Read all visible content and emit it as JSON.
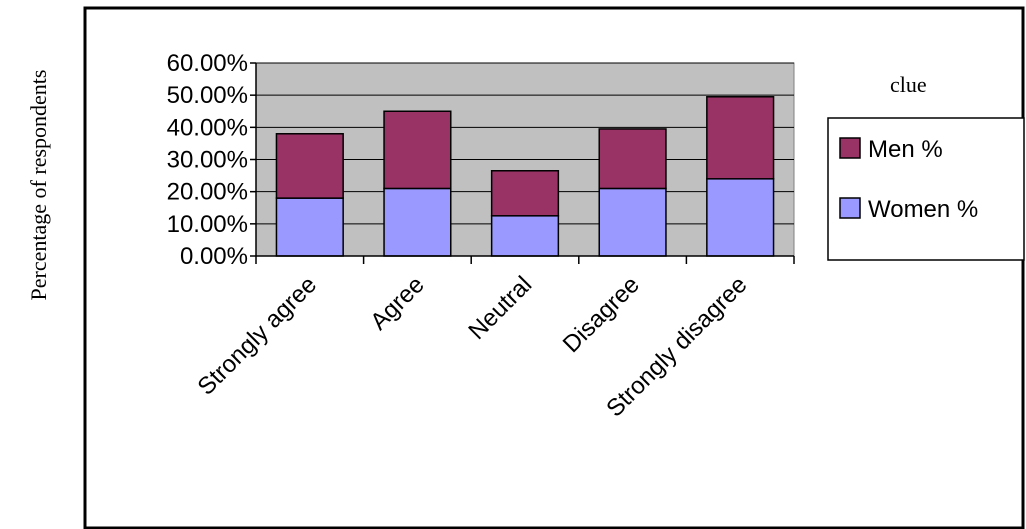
{
  "chart_data": {
    "type": "bar",
    "stacked": true,
    "ylabel": "Percentage of respondents",
    "xlabel": "",
    "categories": [
      "Strongly agree",
      "Agree",
      "Neutral",
      "Disagree",
      "Strongly disagree"
    ],
    "series": [
      {
        "name": "Women %",
        "values": [
          0.18,
          0.21,
          0.125,
          0.21,
          0.24
        ],
        "color": "#9999ff"
      },
      {
        "name": "Men %",
        "values": [
          0.2,
          0.24,
          0.14,
          0.185,
          0.255
        ],
        "color": "#993366"
      }
    ],
    "ylim": [
      0,
      0.6
    ],
    "yticks": [
      "0.00%",
      "10.00%",
      "20.00%",
      "30.00%",
      "40.00%",
      "50.00%",
      "60.00%"
    ],
    "grid": true,
    "plot_background": "#c0c0c0",
    "legend": {
      "title": "clue",
      "placement": "right",
      "order": [
        "Men %",
        "Women %"
      ]
    }
  }
}
